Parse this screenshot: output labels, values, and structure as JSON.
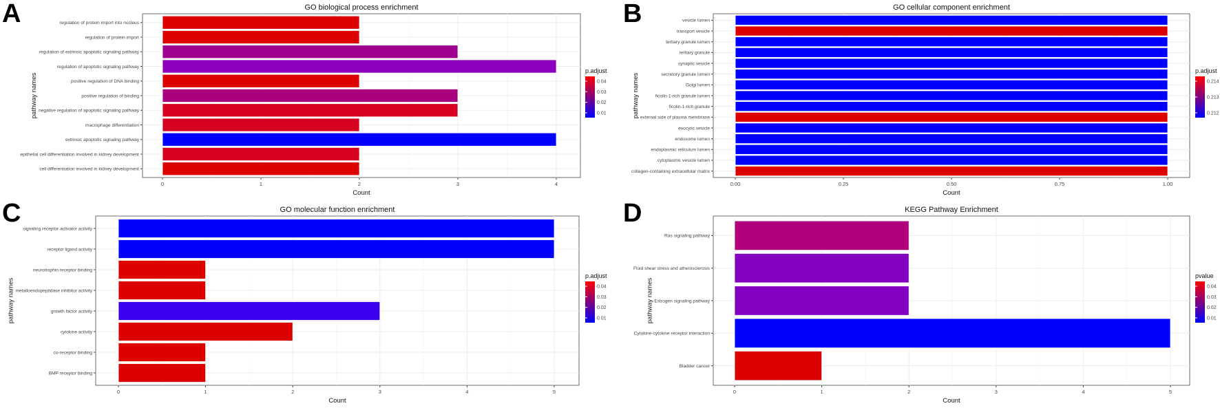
{
  "chart_data": [
    {
      "panel": "A",
      "type": "bar",
      "orientation": "horizontal",
      "title": "GO biological process enrichment",
      "xlabel": "Count",
      "ylabel": "pathway names",
      "xlim": [
        0,
        4
      ],
      "xticks": [
        "0",
        "1",
        "2",
        "3",
        "4"
      ],
      "legend": {
        "title": "p.adjust",
        "ticks": [
          "0.04",
          "0.03",
          "0.02",
          "0.01"
        ],
        "position": "right"
      },
      "grid": true,
      "categories": [
        "regulation of protein import into nucleus",
        "regulation of protein import",
        "regulation of extrinsic apoptotic signaling pathway",
        "regulation of apoptotic signaling pathway",
        "positive regulation of DNA binding",
        "positive regulation of binding",
        "negative regulation of apoptotic signaling pathway",
        "macrophage differentiation",
        "extrinsic apoptotic signaling pathway",
        "epithelial cell differentiation involved in kidney development",
        "cell differentiation involved in kidney development"
      ],
      "values": [
        2,
        2,
        3,
        4,
        2,
        3,
        3,
        2,
        4,
        2,
        2
      ],
      "colors": [
        "#DD0000",
        "#DD0000",
        "#A0008E",
        "#8A00BC",
        "#DD0000",
        "#AA0080",
        "#D60020",
        "#D60020",
        "#0000FF",
        "#D60020",
        "#DD0000"
      ]
    },
    {
      "panel": "B",
      "type": "bar",
      "orientation": "horizontal",
      "title": "GO cellular component enrichment",
      "xlabel": "Count",
      "ylabel": "pathway names",
      "xlim": [
        0,
        1
      ],
      "xticks": [
        "0.00",
        "0.25",
        "0.50",
        "0.75",
        "1.00"
      ],
      "legend": {
        "title": "p.adjust",
        "ticks": [
          "0.214",
          "0.213",
          "0.212"
        ],
        "position": "right"
      },
      "grid": true,
      "categories": [
        "vesicle lumen",
        "transport vesicle",
        "tertiary granule lumen",
        "tertiary granule",
        "synaptic vesicle",
        "secretory granule lumen",
        "Golgi lumen",
        "ficolin-1-rich granule lumen",
        "ficolin-1-rich granule",
        "external side of plasma membrane",
        "exocytic vesicle",
        "endosome lumen",
        "endoplasmic reticulum lumen",
        "cytoplasmic vesicle lumen",
        "collagen-containing extracellular matrix"
      ],
      "values": [
        1,
        1,
        1,
        1,
        1,
        1,
        1,
        1,
        1,
        1,
        1,
        1,
        1,
        1,
        1
      ],
      "colors": [
        "#0000FF",
        "#DD0000",
        "#0000FF",
        "#0000FF",
        "#0000FF",
        "#0000FF",
        "#0000FF",
        "#0000FF",
        "#0000FF",
        "#DD0000",
        "#0000FF",
        "#0000FF",
        "#0000FF",
        "#0000FF",
        "#DD0000"
      ]
    },
    {
      "panel": "C",
      "type": "bar",
      "orientation": "horizontal",
      "title": "GO molecular function enrichment",
      "xlabel": "Count",
      "ylabel": "pathway names",
      "xlim": [
        0,
        5
      ],
      "xticks": [
        "0",
        "1",
        "2",
        "3",
        "4",
        "5"
      ],
      "legend": {
        "title": "p.adjust",
        "ticks": [
          "0.04",
          "0.03",
          "0.02",
          "0.01"
        ],
        "position": "right"
      },
      "grid": true,
      "categories": [
        "signaling receptor activator activity",
        "receptor ligand activity",
        "neurotrophin receptor binding",
        "metalloendopeptidase inhibitor activity",
        "growth factor activity",
        "cytokine activity",
        "co-receptor binding",
        "BMP receptor binding"
      ],
      "values": [
        5,
        5,
        1,
        1,
        3,
        2,
        1,
        1
      ],
      "colors": [
        "#0000FF",
        "#0000FF",
        "#DD0000",
        "#DD0000",
        "#3A00EE",
        "#DD0000",
        "#DD0000",
        "#DD0000"
      ]
    },
    {
      "panel": "D",
      "type": "bar",
      "orientation": "horizontal",
      "title": "KEGG Pathway Enrichment",
      "xlabel": "Count",
      "ylabel": "pathway names",
      "xlim": [
        0,
        5
      ],
      "xticks": [
        "0",
        "1",
        "2",
        "3",
        "4",
        "5"
      ],
      "legend": {
        "title": "pvalue",
        "ticks": [
          "0.04",
          "0.03",
          "0.02",
          "0.01"
        ],
        "position": "right"
      },
      "grid": true,
      "categories": [
        "Ras signaling pathway",
        "Fluid shear stress and atherosclerosis",
        "Estrogen signaling pathway",
        "Cytokine-cytokine receptor interaction",
        "Bladder cancer"
      ],
      "values": [
        2,
        2,
        2,
        5,
        1
      ],
      "colors": [
        "#B0007A",
        "#8400C0",
        "#8400C0",
        "#0000FF",
        "#DD0000"
      ]
    }
  ]
}
